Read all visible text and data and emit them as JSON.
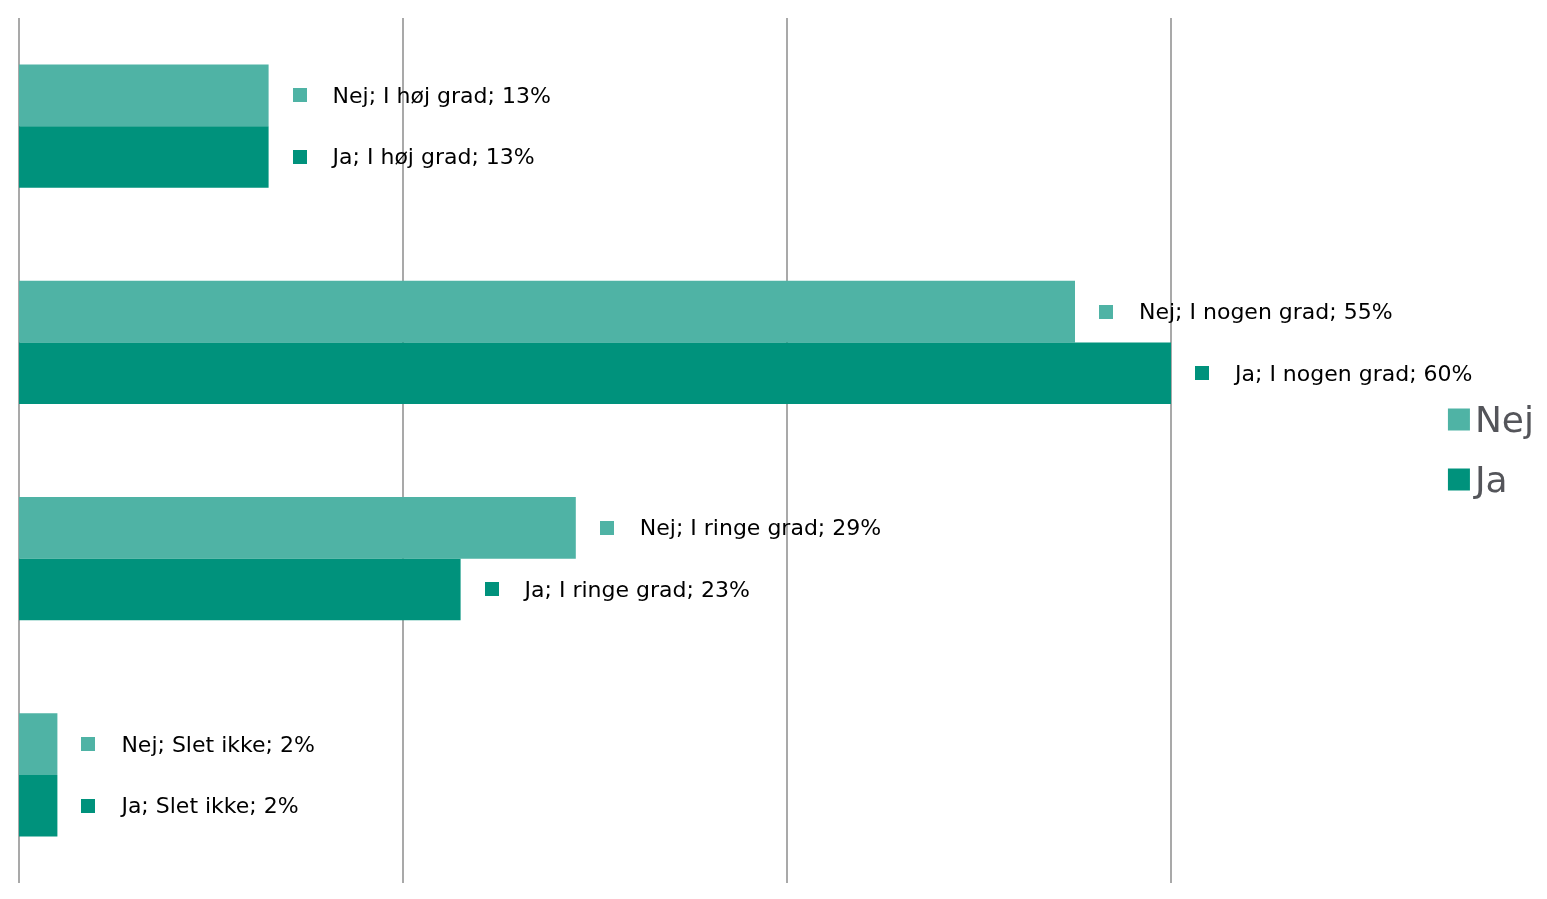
{
  "chart_data": {
    "type": "bar",
    "orientation": "horizontal",
    "categories": [
      null,
      null,
      null,
      null
    ],
    "series": [
      {
        "name": "Nej",
        "color": "#4fb3a5",
        "values": [
          13,
          55,
          29,
          2
        ],
        "value_labels": [
          "Nej; I høj grad; 13%",
          "Nej; I nogen grad; 55%",
          "Nej; I ringe grad; 29%",
          "Nej; Slet ikke; 2%"
        ]
      },
      {
        "name": "Ja",
        "color": "#00927c",
        "values": [
          13,
          60,
          23,
          2
        ],
        "value_labels": [
          "Ja; I høj grad; 13%",
          "Ja; I nogen grad; 60%",
          "Ja; I ringe grad; 23%",
          "Ja; Slet ikke; 2%"
        ]
      }
    ],
    "xlim": [
      0,
      60
    ],
    "xticks": [
      {
        "value": 0,
        "label": null
      },
      {
        "value": 20,
        "label": null
      },
      {
        "value": 40,
        "label": null
      },
      {
        "value": 60,
        "label": null
      }
    ],
    "grid": "x",
    "legend": "right"
  }
}
